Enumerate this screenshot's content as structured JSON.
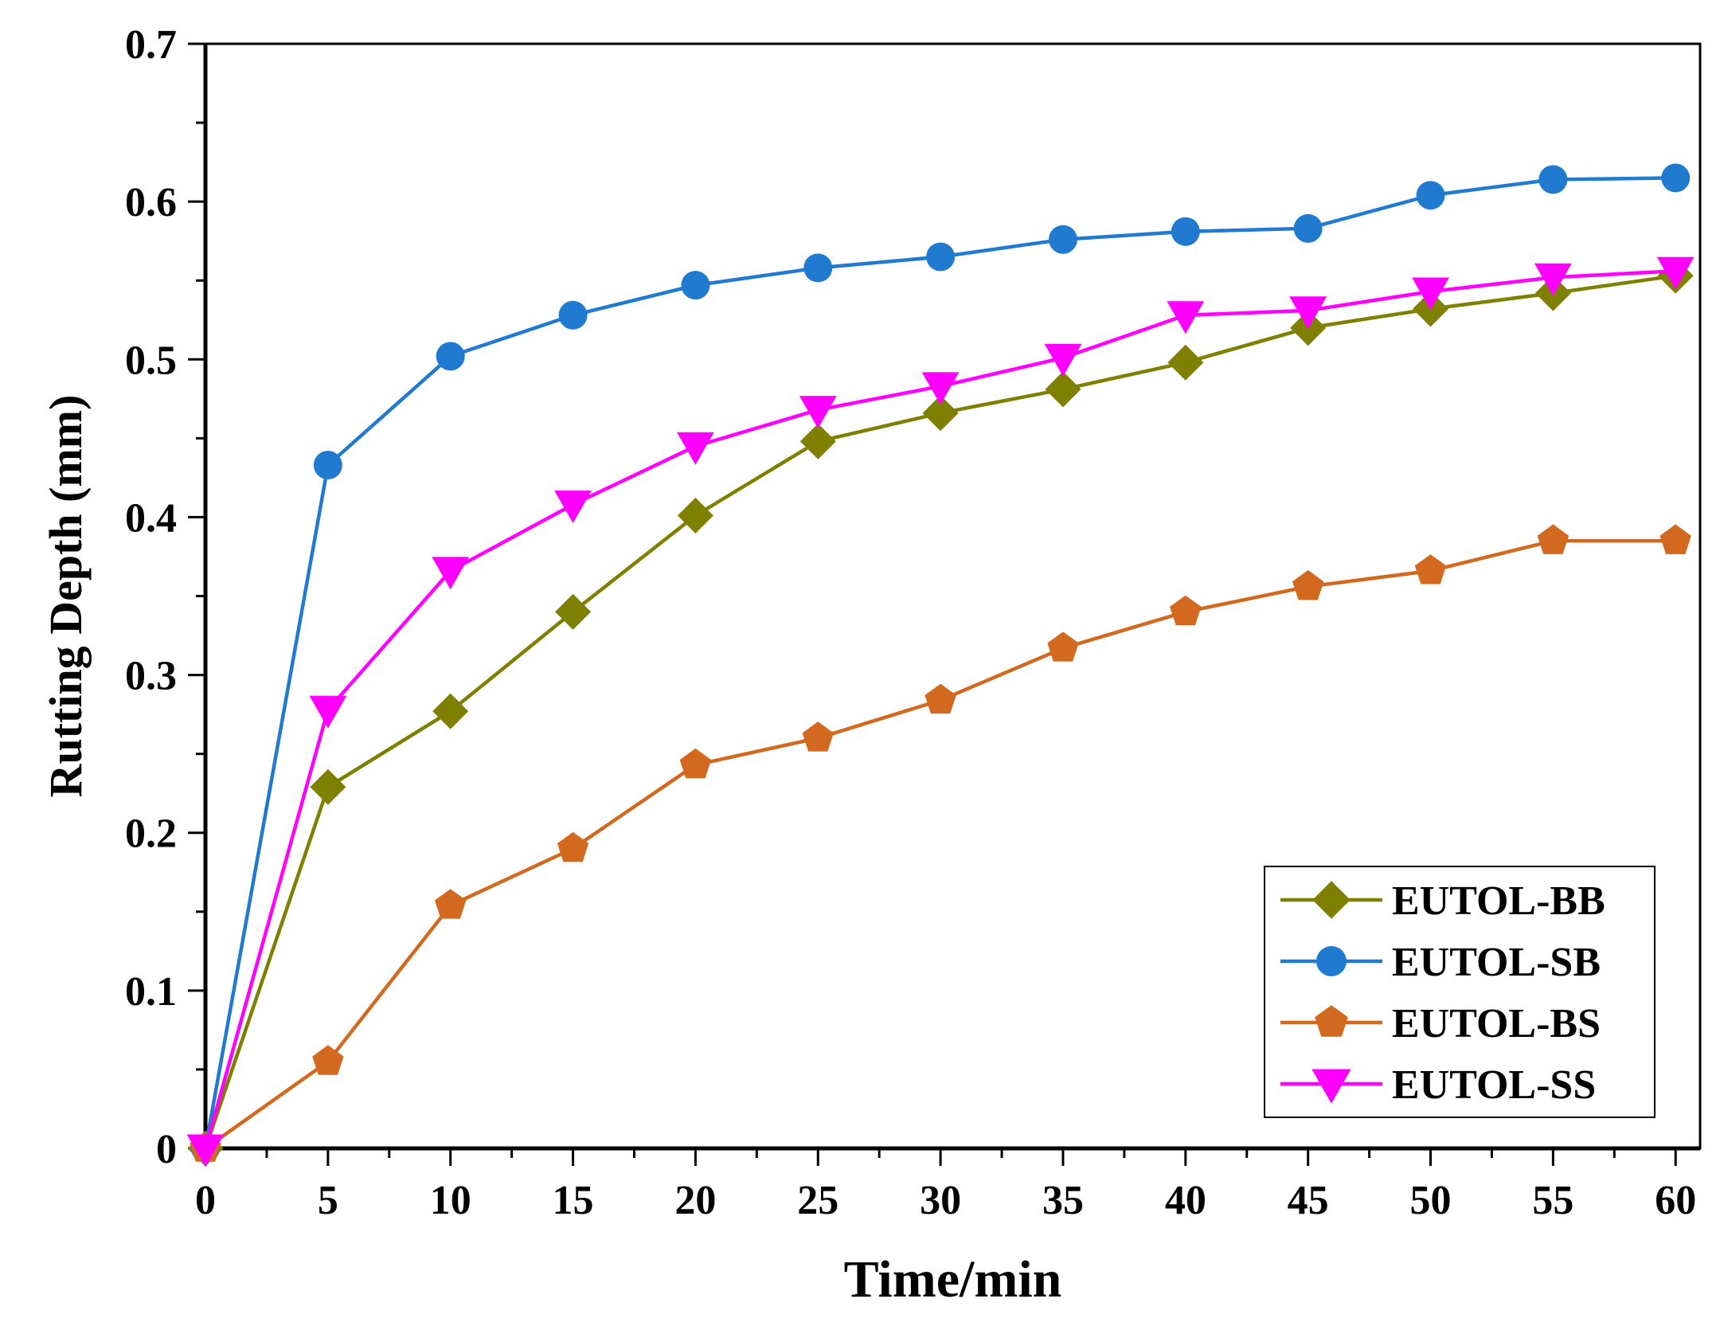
{
  "chart_data": {
    "type": "line",
    "title": "",
    "xlabel": "Time/min",
    "ylabel": "Rutting Depth (mm)",
    "xlim": [
      0,
      61
    ],
    "ylim": [
      0,
      0.7
    ],
    "x_ticks": [
      "0",
      "5",
      "10",
      "15",
      "20",
      "25",
      "30",
      "35",
      "40",
      "45",
      "50",
      "55",
      "60"
    ],
    "y_ticks": [
      "0",
      "0.1",
      "0.2",
      "0.3",
      "0.4",
      "0.5",
      "0.6",
      "0.7"
    ],
    "x": [
      0,
      5,
      10,
      15,
      20,
      25,
      30,
      35,
      40,
      45,
      50,
      55,
      60
    ],
    "grid": false,
    "legend_position": "bottom-right",
    "series": [
      {
        "name": "EUTOL-BB",
        "color": "#7f7f00",
        "marker": "diamond",
        "values": [
          0.0,
          0.229,
          0.277,
          0.34,
          0.401,
          0.448,
          0.466,
          0.481,
          0.498,
          0.52,
          0.532,
          0.542,
          0.553
        ]
      },
      {
        "name": "EUTOL-SB",
        "color": "#1f7ad0",
        "marker": "circle",
        "values": [
          0.0,
          0.433,
          0.502,
          0.528,
          0.547,
          0.558,
          0.565,
          0.576,
          0.581,
          0.583,
          0.604,
          0.614,
          0.615
        ]
      },
      {
        "name": "EUTOL-BS",
        "color": "#d2691e",
        "marker": "pentagon",
        "values": [
          0.0,
          0.055,
          0.154,
          0.19,
          0.243,
          0.26,
          0.284,
          0.317,
          0.34,
          0.356,
          0.366,
          0.385,
          0.385
        ]
      },
      {
        "name": "EUTOL-SS",
        "color": "#ff00ff",
        "marker": "triangle-down",
        "values": [
          0.0,
          0.278,
          0.366,
          0.408,
          0.445,
          0.468,
          0.483,
          0.501,
          0.528,
          0.531,
          0.543,
          0.552,
          0.556
        ]
      }
    ]
  }
}
